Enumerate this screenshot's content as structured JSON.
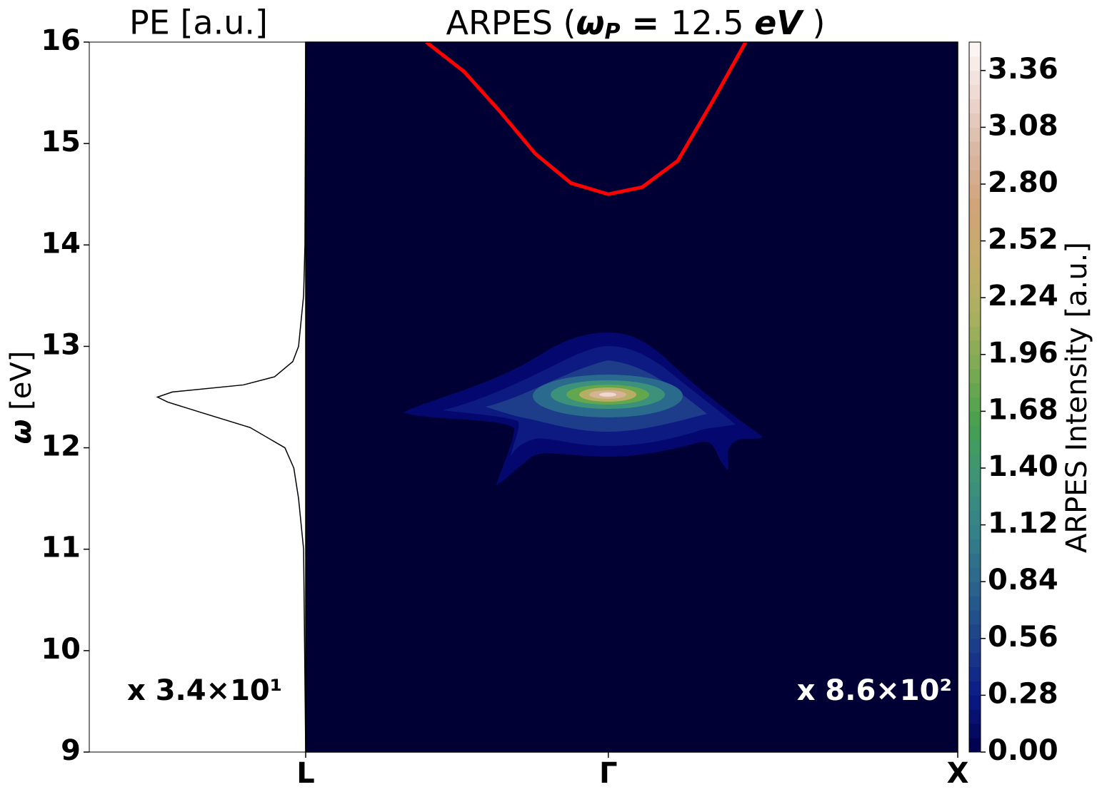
{
  "chart_data": [
    {
      "type": "line",
      "title": "PE [a.u.]",
      "ylabel": [
        "ω",
        " [eV]"
      ],
      "ylim": [
        9,
        16
      ],
      "yticks": [
        9,
        10,
        11,
        12,
        13,
        14,
        15,
        16
      ],
      "xlim": [
        0,
        1.46
      ],
      "x_reversed": true,
      "annotation": "x 3.4×10¹",
      "series": [
        {
          "color": "#000000",
          "x": [
            0,
            0.014,
            0.048,
            0.08,
            0.14,
            0.375,
            0.71,
            0.93,
            1.0,
            0.9,
            0.42,
            0.21,
            0.087,
            0.048,
            0.014,
            0.005,
            0
          ],
          "values": [
            9,
            11,
            11.5,
            11.8,
            12.0,
            12.2,
            12.35,
            12.45,
            12.5,
            12.55,
            12.62,
            12.7,
            12.85,
            13.0,
            13.5,
            14,
            16
          ]
        }
      ]
    },
    {
      "type": "line",
      "title": [
        "ARPES (",
        "ω",
        "P",
        " = ",
        "12.5 ",
        "eV",
        " )"
      ],
      "ylim": [
        9,
        16
      ],
      "xlim": [
        0,
        1.866
      ],
      "xticks": [
        {
          "value": 0,
          "label": "L"
        },
        {
          "value": 0.866,
          "label": "Γ"
        },
        {
          "value": 1.866,
          "label": "X"
        }
      ],
      "background": "#000034",
      "annotation": "x 8.6×10²",
      "series": [
        {
          "color": "#ff0000",
          "x": [
            0.345,
            0.453,
            0.555,
            0.657,
            0.759,
            0.866,
            0.963,
            1.065,
            1.167,
            1.259
          ],
          "values": [
            16,
            15.71,
            15.32,
            14.9,
            14.61,
            14.5,
            14.57,
            14.83,
            15.43,
            16
          ]
        }
      ],
      "colorbar": {
        "label": "ARPES Intensity [a.u.]",
        "lim": [
          0,
          3.5
        ],
        "ticks": [
          {
            "value": 0,
            "label": "0.00"
          },
          0.28,
          0.56,
          0.84,
          1.12,
          {
            "value": 1.4,
            "label": "1.40"
          },
          1.68,
          1.96,
          2.24,
          2.52,
          {
            "value": 2.8,
            "label": "2.80"
          },
          3.08,
          3.36
        ],
        "colors": [
          "#00004a",
          "#0a1a86",
          "#1d3f8a",
          "#2a628c",
          "#34808a",
          "#3d9378",
          "#45a050",
          "#7aaa52",
          "#aab060",
          "#c4ac6a",
          "#d1a47a",
          "#d8b7a2",
          "#eed8d0",
          "#fdf8f8"
        ]
      }
    }
  ]
}
